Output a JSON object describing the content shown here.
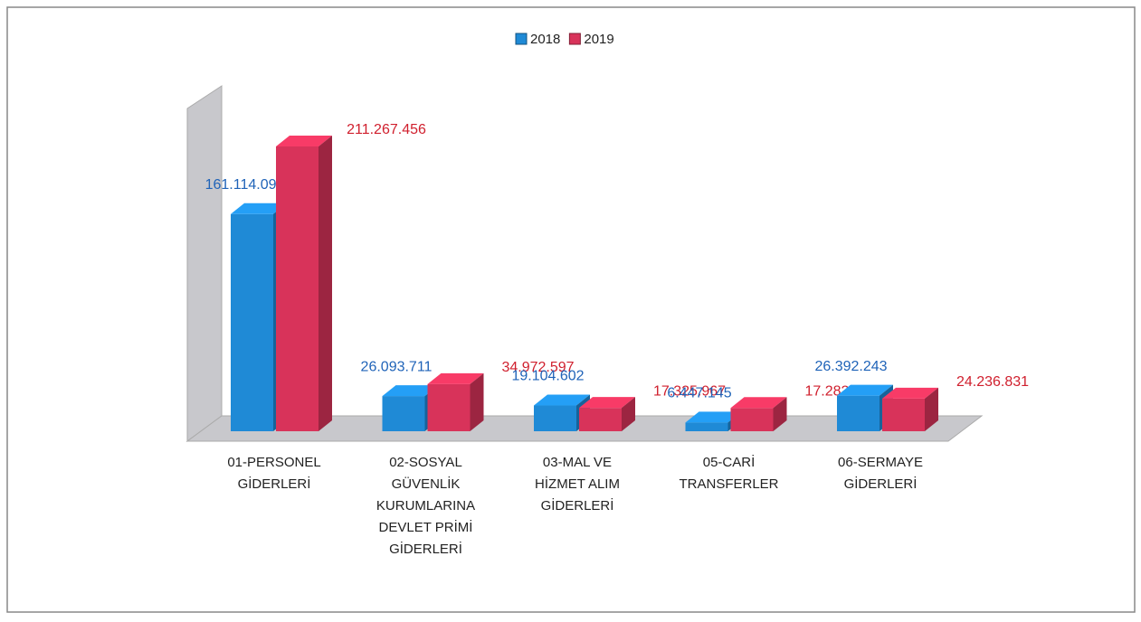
{
  "chart_data": {
    "type": "bar3d",
    "categories": [
      "01-PERSONEL\nGİDERLERİ",
      "02-SOSYAL\nGÜVENLİK\nKURUMLARINA\nDEVLET PRİMİ\nGİDERLERİ",
      "03-MAL VE\nHİZMET ALIM\nGİDERLERİ",
      "05-CARİ\nTRANSFERLER",
      "06-SERMAYE\nGİDERLERİ"
    ],
    "series": [
      {
        "name": "2018",
        "color": "#1f8ad6",
        "values": [
          161114094,
          26093711,
          19104602,
          6447145,
          26392243
        ],
        "value_labels": [
          "161.114.094",
          "26.093.711",
          "19.104.602",
          "6.447.145",
          "26.392.243"
        ]
      },
      {
        "name": "2019",
        "color": "#d8335a",
        "values": [
          211267456,
          34972597,
          17325967,
          17282205,
          24236831
        ],
        "value_labels": [
          "211.267.456",
          "34.972.597",
          "17.325.967",
          "17.282.205",
          "24.236.831"
        ]
      }
    ],
    "legend": "top"
  }
}
